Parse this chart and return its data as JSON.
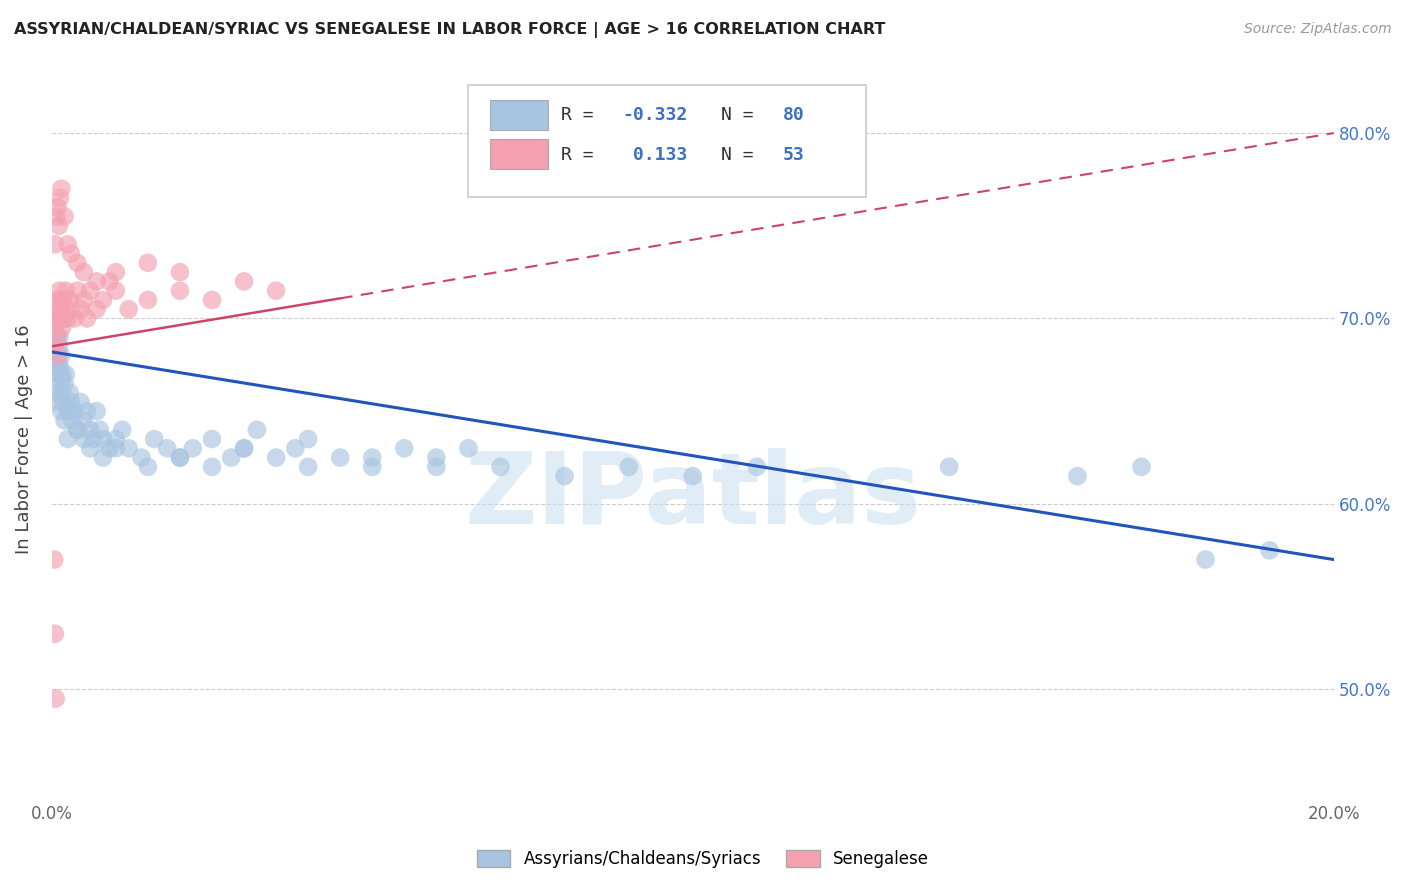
{
  "title": "ASSYRIAN/CHALDEAN/SYRIAC VS SENEGALESE IN LABOR FORCE | AGE > 16 CORRELATION CHART",
  "source": "Source: ZipAtlas.com",
  "xlim": [
    0.0,
    20.0
  ],
  "ylim": [
    44.0,
    83.0
  ],
  "ylabel": "In Labor Force | Age > 16",
  "legend_label_blue": "Assyrians/Chaldeans/Syriacs",
  "legend_label_pink": "Senegalese",
  "R_blue": -0.332,
  "N_blue": 80,
  "R_pink": 0.133,
  "N_pink": 53,
  "color_blue": "#a8c4e0",
  "color_pink": "#f4a0b0",
  "color_blue_line": "#2255bb",
  "color_pink_line": "#cc4466",
  "color_blue_text": "#3a6fc4",
  "watermark": "ZIPatlas",
  "watermark_color": "#cce0f0",
  "yticks": [
    50,
    60,
    70,
    80
  ],
  "xticks": [
    0,
    20
  ],
  "blue_x": [
    0.05,
    0.07,
    0.08,
    0.09,
    0.1,
    0.11,
    0.12,
    0.13,
    0.14,
    0.15,
    0.16,
    0.17,
    0.18,
    0.2,
    0.22,
    0.25,
    0.28,
    0.3,
    0.32,
    0.35,
    0.4,
    0.45,
    0.5,
    0.55,
    0.6,
    0.65,
    0.7,
    0.75,
    0.8,
    0.9,
    1.0,
    1.1,
    1.2,
    1.4,
    1.6,
    1.8,
    2.0,
    2.2,
    2.5,
    2.8,
    3.0,
    3.2,
    3.5,
    3.8,
    4.0,
    4.5,
    5.0,
    5.5,
    6.0,
    6.5,
    0.06,
    0.08,
    0.1,
    0.12,
    0.15,
    0.2,
    0.25,
    0.3,
    0.4,
    0.5,
    0.6,
    0.8,
    1.0,
    1.5,
    2.0,
    2.5,
    3.0,
    4.0,
    5.0,
    6.0,
    7.0,
    8.0,
    9.0,
    10.0,
    11.0,
    14.0,
    16.0,
    17.0,
    18.0,
    19.0
  ],
  "blue_y": [
    68.5,
    67.5,
    69.0,
    68.0,
    67.5,
    68.5,
    69.0,
    67.0,
    66.5,
    68.0,
    66.0,
    67.0,
    65.5,
    66.5,
    67.0,
    65.0,
    66.0,
    65.5,
    64.5,
    65.0,
    64.0,
    65.5,
    64.5,
    65.0,
    64.0,
    63.5,
    65.0,
    64.0,
    63.5,
    63.0,
    63.5,
    64.0,
    63.0,
    62.5,
    63.5,
    63.0,
    62.5,
    63.0,
    63.5,
    62.5,
    63.0,
    64.0,
    62.5,
    63.0,
    63.5,
    62.5,
    62.0,
    63.0,
    62.5,
    63.0,
    67.0,
    65.5,
    66.0,
    67.5,
    65.0,
    64.5,
    63.5,
    65.0,
    64.0,
    63.5,
    63.0,
    62.5,
    63.0,
    62.0,
    62.5,
    62.0,
    63.0,
    62.0,
    62.5,
    62.0,
    62.0,
    61.5,
    62.0,
    61.5,
    62.0,
    62.0,
    61.5,
    62.0,
    57.0,
    57.5
  ],
  "pink_x": [
    0.04,
    0.05,
    0.06,
    0.07,
    0.08,
    0.09,
    0.1,
    0.11,
    0.12,
    0.13,
    0.14,
    0.15,
    0.16,
    0.18,
    0.2,
    0.22,
    0.25,
    0.28,
    0.3,
    0.35,
    0.4,
    0.45,
    0.5,
    0.55,
    0.6,
    0.7,
    0.8,
    0.9,
    1.0,
    1.2,
    1.5,
    2.0,
    2.5,
    3.0,
    3.5,
    0.05,
    0.07,
    0.09,
    0.11,
    0.13,
    0.15,
    0.2,
    0.25,
    0.3,
    0.4,
    0.5,
    0.7,
    1.0,
    1.5,
    2.0,
    0.05,
    0.04,
    0.06
  ],
  "pink_y": [
    68.5,
    69.5,
    70.0,
    71.0,
    70.5,
    69.0,
    68.0,
    70.0,
    71.5,
    70.0,
    71.0,
    70.5,
    69.5,
    71.0,
    70.0,
    71.5,
    70.0,
    71.0,
    70.5,
    70.0,
    71.5,
    70.5,
    71.0,
    70.0,
    71.5,
    70.5,
    71.0,
    72.0,
    71.5,
    70.5,
    71.0,
    71.5,
    71.0,
    72.0,
    71.5,
    74.0,
    75.5,
    76.0,
    75.0,
    76.5,
    77.0,
    75.5,
    74.0,
    73.5,
    73.0,
    72.5,
    72.0,
    72.5,
    73.0,
    72.5,
    53.0,
    57.0,
    49.5
  ]
}
